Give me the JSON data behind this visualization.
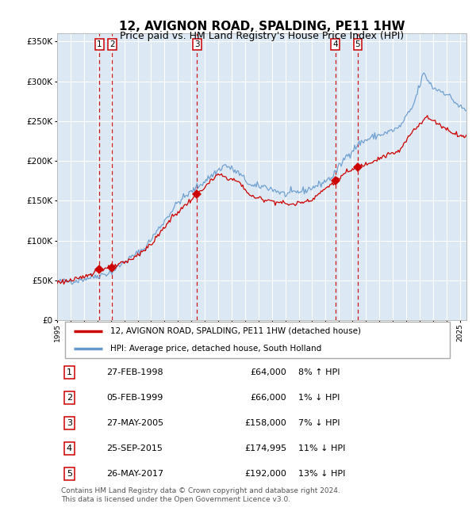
{
  "title": "12, AVIGNON ROAD, SPALDING, PE11 1HW",
  "subtitle": "Price paid vs. HM Land Registry's House Price Index (HPI)",
  "legend_label_red": "12, AVIGNON ROAD, SPALDING, PE11 1HW (detached house)",
  "legend_label_blue": "HPI: Average price, detached house, South Holland",
  "footer": "Contains HM Land Registry data © Crown copyright and database right 2024.\nThis data is licensed under the Open Government Licence v3.0.",
  "transactions": [
    {
      "num": 1,
      "date": "27-FEB-1998",
      "price": 64000,
      "hpi_diff": "8% ↑ HPI"
    },
    {
      "num": 2,
      "date": "05-FEB-1999",
      "price": 66000,
      "hpi_diff": "1% ↓ HPI"
    },
    {
      "num": 3,
      "date": "27-MAY-2005",
      "price": 158000,
      "hpi_diff": "7% ↓ HPI"
    },
    {
      "num": 4,
      "date": "25-SEP-2015",
      "price": 174995,
      "hpi_diff": "11% ↓ HPI"
    },
    {
      "num": 5,
      "date": "26-MAY-2017",
      "price": 192000,
      "hpi_diff": "13% ↓ HPI"
    }
  ],
  "trans_x": [
    1998.16,
    1999.09,
    2005.41,
    2015.73,
    2017.4
  ],
  "trans_y": [
    64000,
    66000,
    158000,
    174995,
    192000
  ],
  "ylim": [
    0,
    360000
  ],
  "yticks": [
    0,
    50000,
    100000,
    150000,
    200000,
    250000,
    300000,
    350000
  ],
  "xlim_start": 1995.0,
  "xlim_end": 2025.5,
  "plot_bg_color": "#dce9f5",
  "grid_color": "#ffffff",
  "red_line_color": "#cc0000",
  "blue_line_color": "#6699cc",
  "dashed_line_color": "#cc0000",
  "marker_color": "#cc0000",
  "title_fontsize": 11,
  "subtitle_fontsize": 9
}
